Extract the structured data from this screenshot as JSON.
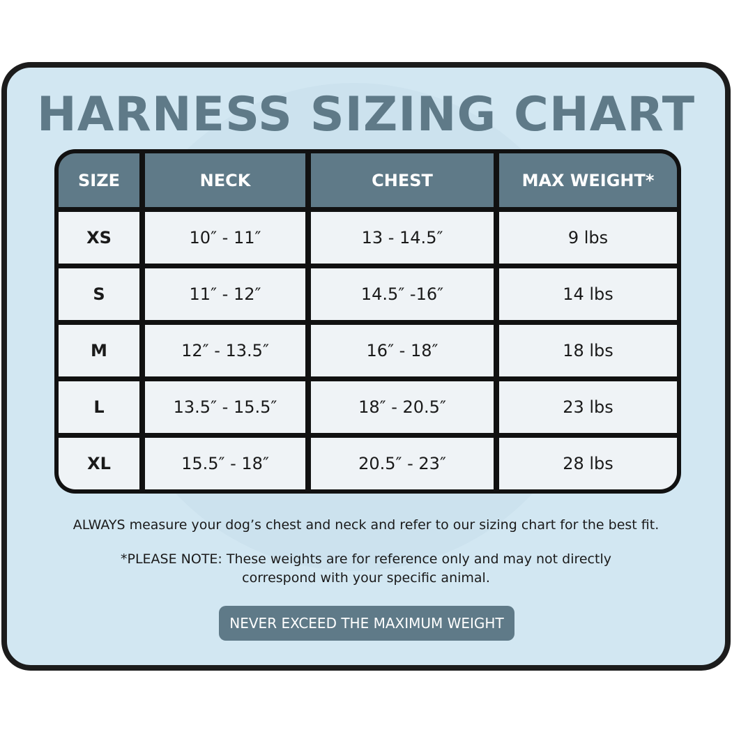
{
  "title": "HARNESS SIZING CHART",
  "table": {
    "headers": [
      "SIZE",
      "NECK",
      "CHEST",
      "MAX WEIGHT*"
    ],
    "rows": [
      [
        "XS",
        "10″ - 11″",
        "13 - 14.5″",
        "9 lbs"
      ],
      [
        "S",
        "11″ - 12″",
        "14.5″ -16″",
        "14 lbs"
      ],
      [
        "M",
        "12″ - 13.5″",
        "16″ - 18″",
        "18 lbs"
      ],
      [
        "L",
        "13.5″ - 15.5″",
        "18″ - 20.5″",
        "23 lbs"
      ],
      [
        "XL",
        "15.5″ - 18″",
        "20.5″ - 23″",
        "28 lbs"
      ]
    ]
  },
  "notes": {
    "measure": "ALWAYS measure your dog’s chest and neck and refer to our sizing chart for the best fit.",
    "disclaimer": "*PLEASE NOTE: These weights are for reference only and may not directly correspond with your specific animal."
  },
  "banner": "NEVER EXCEED THE MAXIMUM WEIGHT",
  "colors": {
    "background": "#d2e7f2",
    "accent": "#5f7a88",
    "border": "#1c1c1c",
    "cell": "#eff3f6"
  }
}
